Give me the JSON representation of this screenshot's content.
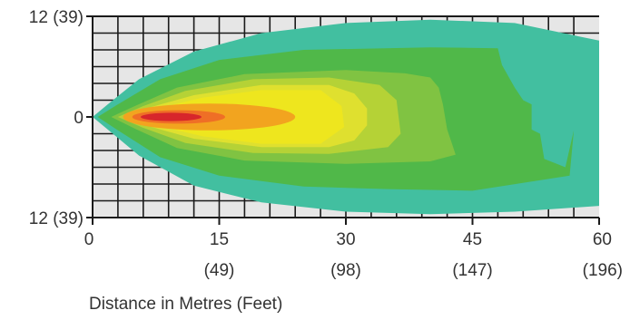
{
  "chart_data": {
    "type": "heatmap",
    "title": "",
    "xlabel": "Distance in Metres (Feet)",
    "ylabel": "",
    "xlim": [
      0,
      60
    ],
    "ylim": [
      -12,
      12
    ],
    "grid": true,
    "x_ticks": [
      {
        "value": 0,
        "label": "0",
        "sublabel": ""
      },
      {
        "value": 15,
        "label": "15",
        "sublabel": "(49)"
      },
      {
        "value": 30,
        "label": "30",
        "sublabel": "(98)"
      },
      {
        "value": 45,
        "label": "45",
        "sublabel": "(147)"
      },
      {
        "value": 60,
        "label": "60",
        "sublabel": "(196)"
      }
    ],
    "y_ticks": [
      {
        "value": 12,
        "label": "12 (39)"
      },
      {
        "value": 0,
        "label": "0"
      },
      {
        "value": -12,
        "label": "12 (39)"
      }
    ],
    "bands": [
      {
        "level": 1,
        "color": "#42bfa0",
        "outline": [
          [
            0,
            0
          ],
          [
            1.8,
            1.5
          ],
          [
            5.5,
            4.5
          ],
          [
            12,
            7.8
          ],
          [
            20,
            10
          ],
          [
            30,
            11.2
          ],
          [
            40,
            11.6
          ],
          [
            50,
            11.2
          ],
          [
            60,
            9.1
          ],
          [
            60,
            -10.6
          ],
          [
            50,
            -11.3
          ],
          [
            40,
            -11.6
          ],
          [
            30,
            -11.3
          ],
          [
            20,
            -10.2
          ],
          [
            12,
            -8.2
          ],
          [
            5.5,
            -4.6
          ],
          [
            1.8,
            -1.5
          ]
        ]
      },
      {
        "level": 2,
        "color": "#50b849",
        "outline": [
          [
            0.6,
            0
          ],
          [
            3,
            1.5
          ],
          [
            8,
            4.5
          ],
          [
            15,
            6.8
          ],
          [
            25,
            8
          ],
          [
            40,
            8.3
          ],
          [
            48,
            8.2
          ],
          [
            48.5,
            6.2
          ],
          [
            50,
            3.5
          ],
          [
            51,
            2
          ],
          [
            52,
            1.5
          ],
          [
            52,
            -1.5
          ],
          [
            53,
            -2
          ],
          [
            53.5,
            -5
          ],
          [
            56,
            -6
          ],
          [
            57,
            -1.6
          ],
          [
            56.5,
            -7
          ],
          [
            45,
            -8.8
          ],
          [
            35,
            -8.6
          ],
          [
            25,
            -8.3
          ],
          [
            15,
            -7
          ],
          [
            8,
            -4.8
          ],
          [
            3,
            -1.6
          ]
        ]
      },
      {
        "level": 3,
        "color": "#80c342",
        "outline": [
          [
            2.2,
            0
          ],
          [
            5,
            1.3
          ],
          [
            10,
            3.5
          ],
          [
            18,
            5.1
          ],
          [
            30,
            5.6
          ],
          [
            37,
            5.2
          ],
          [
            40,
            4.7
          ],
          [
            41,
            3.5
          ],
          [
            41.5,
            1.5
          ],
          [
            42,
            -1.5
          ],
          [
            42.5,
            -3
          ],
          [
            43,
            -4.5
          ],
          [
            40,
            -5.3
          ],
          [
            30,
            -5.6
          ],
          [
            18,
            -5.2
          ],
          [
            10,
            -3.7
          ],
          [
            5,
            -1.4
          ]
        ]
      },
      {
        "level": 4,
        "color": "#b5d236",
        "outline": [
          [
            3,
            0
          ],
          [
            6,
            1.3
          ],
          [
            11,
            3.1
          ],
          [
            19,
            4.5
          ],
          [
            28,
            4.7
          ],
          [
            34,
            3.8
          ],
          [
            36,
            2
          ],
          [
            36.5,
            -2
          ],
          [
            35,
            -3.6
          ],
          [
            28,
            -4.4
          ],
          [
            19,
            -4.3
          ],
          [
            11,
            -3.1
          ],
          [
            6,
            -1.3
          ]
        ]
      },
      {
        "level": 5,
        "color": "#dfe02f",
        "outline": [
          [
            3.6,
            0
          ],
          [
            7,
            1.2
          ],
          [
            12,
            2.6
          ],
          [
            20,
            3.8
          ],
          [
            28,
            3.8
          ],
          [
            31,
            2.8
          ],
          [
            32.5,
            1
          ],
          [
            32.5,
            -1
          ],
          [
            31,
            -2.8
          ],
          [
            28,
            -3.6
          ],
          [
            20,
            -3.6
          ],
          [
            12,
            -2.6
          ],
          [
            7,
            -1.2
          ]
        ]
      },
      {
        "level": 6,
        "color": "#eee61e",
        "outline": [
          [
            4.2,
            0
          ],
          [
            8,
            1.1
          ],
          [
            13,
            2.3
          ],
          [
            20,
            3.2
          ],
          [
            27,
            3.2
          ],
          [
            29.5,
            1.3
          ],
          [
            29.8,
            -1.2
          ],
          [
            27,
            -3.2
          ],
          [
            20,
            -3.2
          ],
          [
            13,
            -2.3
          ],
          [
            8,
            -1.1
          ]
        ]
      },
      {
        "level": 7,
        "color": "#f2a41f",
        "shape": "ellipse",
        "cx": 13.8,
        "cy": 0,
        "rx": 10.2,
        "ry": 1.6
      },
      {
        "level": 8,
        "color": "#ef6f26",
        "shape": "ellipse",
        "cx": 10.2,
        "cy": 0,
        "rx": 5.5,
        "ry": 0.8
      },
      {
        "level": 9,
        "color": "#d7262b",
        "shape": "ellipse",
        "cx": 9.3,
        "cy": 0,
        "rx": 3.6,
        "ry": 0.5
      }
    ]
  }
}
